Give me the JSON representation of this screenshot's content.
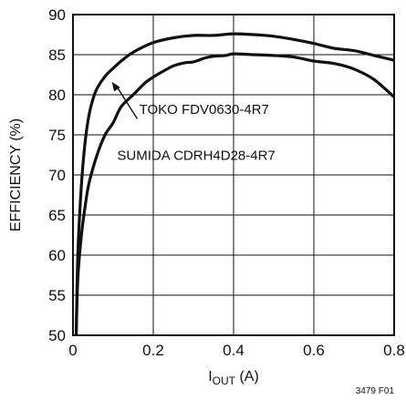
{
  "chart_data": {
    "type": "line",
    "ylabel": "EFFICIENCY (%)",
    "xlabel_main": "I",
    "xlabel_sub": "OUT",
    "xlabel_unit": " (A)",
    "xlim": [
      0,
      0.8
    ],
    "ylim": [
      50,
      90
    ],
    "xticks": [
      0,
      0.2,
      0.4,
      0.6,
      0.8
    ],
    "xtick_labels": [
      "0",
      "0.2",
      "0.4",
      "0.6",
      "0.8"
    ],
    "yticks": [
      50,
      55,
      60,
      65,
      70,
      75,
      80,
      85,
      90
    ],
    "ytick_labels": [
      "50",
      "55",
      "60",
      "65",
      "70",
      "75",
      "80",
      "85",
      "90"
    ],
    "grid": true,
    "series": [
      {
        "name": "TOKO FDV0630-4R7",
        "x": [
          0.008,
          0.012,
          0.02,
          0.03,
          0.04,
          0.05,
          0.06,
          0.08,
          0.1,
          0.12,
          0.15,
          0.2,
          0.25,
          0.3,
          0.35,
          0.4,
          0.45,
          0.5,
          0.55,
          0.6,
          0.65,
          0.7,
          0.75,
          0.8
        ],
        "y": [
          50,
          60,
          68,
          74,
          77.5,
          79.5,
          80.8,
          82.3,
          83.3,
          84.2,
          85.3,
          86.5,
          87.1,
          87.4,
          87.4,
          87.6,
          87.5,
          87.3,
          86.9,
          86.4,
          85.8,
          85.5,
          84.9,
          84.3
        ]
      },
      {
        "name": "SUMIDA CDRH4D28-4R7",
        "x": [
          0.008,
          0.012,
          0.02,
          0.03,
          0.04,
          0.06,
          0.08,
          0.1,
          0.12,
          0.15,
          0.18,
          0.2,
          0.22,
          0.25,
          0.28,
          0.3,
          0.33,
          0.35,
          0.38,
          0.4,
          0.45,
          0.5,
          0.55,
          0.6,
          0.65,
          0.7,
          0.75,
          0.8
        ],
        "y": [
          50,
          57,
          62,
          66,
          69,
          72.5,
          75,
          76.5,
          78.5,
          80,
          81.5,
          82.2,
          82.8,
          83.6,
          84.0,
          84.1,
          84.6,
          84.8,
          84.9,
          85.1,
          85.0,
          84.9,
          84.7,
          84.2,
          83.9,
          83.2,
          81.9,
          79.7
        ]
      }
    ],
    "annotations": [
      {
        "text": "TOKO FDV0630-4R7",
        "x": 0.165,
        "y": 77.6
      },
      {
        "text": "SUMIDA CDRH4D28-4R7",
        "x": 0.11,
        "y": 71.9
      }
    ],
    "figure_id": "3479 F01"
  }
}
